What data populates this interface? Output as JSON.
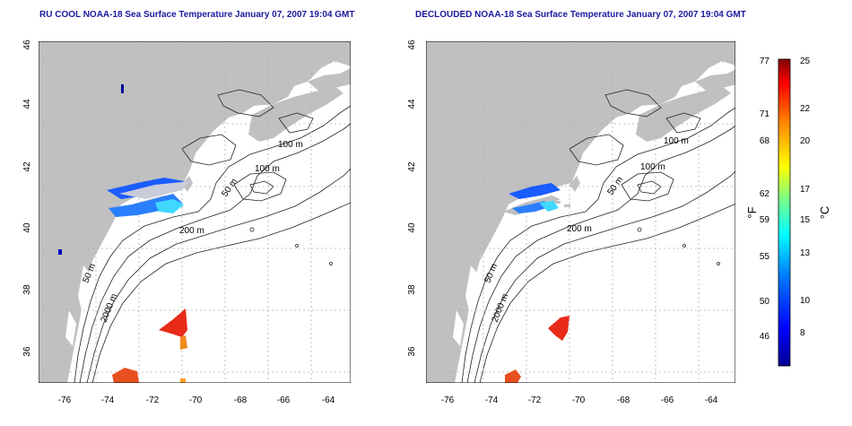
{
  "maps": [
    {
      "title": "RU COOL NOAA-18 Sea Surface Temperature January 07, 2007 19:04 GMT",
      "x_ticks": [
        "-76",
        "-74",
        "-72",
        "-70",
        "-68",
        "-66",
        "-64"
      ],
      "y_ticks": [
        "46",
        "44",
        "42",
        "40",
        "38",
        "36"
      ],
      "contour_labels": [
        "100 m",
        "100 m",
        "50 m",
        "200 m",
        "50 m",
        "2000 m"
      ]
    },
    {
      "title": "DECLOUDED NOAA-18 Sea Surface Temperature January 07, 2007 19:04 GMT",
      "x_ticks": [
        "-76",
        "-74",
        "-72",
        "-70",
        "-68",
        "-66",
        "-64"
      ],
      "y_ticks": [
        "46",
        "44",
        "42",
        "40",
        "38",
        "36"
      ],
      "contour_labels": [
        "100 m",
        "100 m",
        "50 m",
        "200 m",
        "50 m",
        "2000 m"
      ]
    }
  ],
  "colorbar": {
    "unit_f": "°F",
    "unit_c": "°C",
    "f_ticks": [
      "77",
      "71",
      "68",
      "62",
      "59",
      "55",
      "50",
      "46"
    ],
    "c_ticks": [
      "25",
      "22",
      "20",
      "17",
      "15",
      "13",
      "10",
      "8"
    ],
    "colors": [
      "#00008f",
      "#0000ff",
      "#0080ff",
      "#00ffff",
      "#80ff80",
      "#ffff00",
      "#ff8000",
      "#ff0000",
      "#800000"
    ]
  },
  "map_colors": {
    "land": "#c0c0c0",
    "ocean": "#ffffff",
    "grid": "#b0b0b0"
  }
}
